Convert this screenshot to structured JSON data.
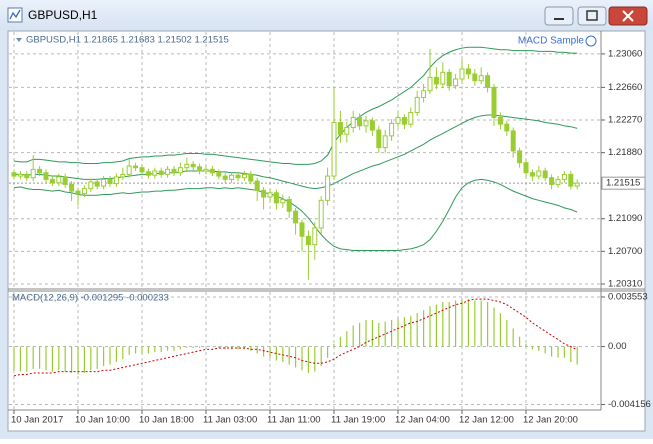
{
  "window": {
    "title": "GBPUSD,H1"
  },
  "chart_data": [
    {
      "type": "candlestick",
      "title": "GBPUSD,H1  1.21865 1.21683 1.21502 1.21515",
      "annotation": "MACD Sample",
      "categories": [
        "10 Jan 2017",
        null,
        null,
        null,
        null,
        null,
        null,
        null,
        null,
        null,
        "10 Jan 10:00",
        null,
        null,
        null,
        null,
        null,
        null,
        null,
        null,
        null,
        "10 Jan 18:00",
        null,
        null,
        null,
        null,
        null,
        null,
        null,
        null,
        null,
        "11 Jan 03:00",
        null,
        null,
        null,
        null,
        null,
        null,
        null,
        null,
        null,
        "11 Jan 11:00",
        null,
        null,
        null,
        null,
        null,
        null,
        null,
        null,
        null,
        "11 Jan 19:00",
        null,
        null,
        null,
        null,
        null,
        null,
        null,
        null,
        null,
        "12 Jan 04:00",
        null,
        null,
        null,
        null,
        null,
        null,
        null,
        null,
        null,
        "12 Jan 12:00",
        null,
        null,
        null,
        null,
        null,
        null,
        null,
        null,
        null,
        "12 Jan 20:00",
        null,
        null,
        null,
        null,
        null,
        null,
        null,
        null
      ],
      "open": [
        1.2164,
        1.216,
        1.2162,
        1.2158,
        1.2168,
        1.2164,
        1.2156,
        1.2152,
        1.2159,
        1.215,
        1.2142,
        1.2139,
        1.2145,
        1.2153,
        1.2148,
        1.2156,
        1.2151,
        1.2159,
        1.2162,
        1.2172,
        1.217,
        1.2165,
        1.2161,
        1.2166,
        1.2162,
        1.2168,
        1.2164,
        1.217,
        1.2174,
        1.2171,
        1.2166,
        1.2168,
        1.2164,
        1.216,
        1.2156,
        1.2161,
        1.2158,
        1.2162,
        1.2154,
        1.2143,
        1.2135,
        1.214,
        1.2128,
        1.2132,
        1.2118,
        1.2104,
        1.2088,
        1.2078,
        1.2098,
        1.2131,
        1.216,
        1.2224,
        1.221,
        1.2218,
        1.223,
        1.222,
        1.2226,
        1.2215,
        1.2194,
        1.2208,
        1.2223,
        1.223,
        1.2222,
        1.2236,
        1.2254,
        1.2262,
        1.2278,
        1.227,
        1.2284,
        1.2268,
        1.2276,
        1.2288,
        1.2282,
        1.2274,
        1.228,
        1.2266,
        1.223,
        1.2222,
        1.2214,
        1.219,
        1.2176,
        1.2164,
        1.216,
        1.2166,
        1.2158,
        1.215,
        1.2156,
        1.2162,
        1.2148
      ],
      "high": [
        1.2168,
        1.2166,
        1.2166,
        1.2185,
        1.2172,
        1.2168,
        1.216,
        1.2163,
        1.2163,
        1.2154,
        1.2146,
        1.2149,
        1.2157,
        1.2157,
        1.216,
        1.216,
        1.2163,
        1.217,
        1.218,
        1.2176,
        1.2174,
        1.2169,
        1.217,
        1.217,
        1.2172,
        1.2172,
        1.2176,
        1.2182,
        1.2178,
        1.2175,
        1.2172,
        1.2172,
        1.2168,
        1.2164,
        1.2165,
        1.2165,
        1.2166,
        1.2166,
        1.2158,
        1.2147,
        1.2145,
        1.2144,
        1.2138,
        1.2136,
        1.2122,
        1.2108,
        1.2095,
        1.2105,
        1.2136,
        1.217,
        1.2266,
        1.2238,
        1.2225,
        1.2238,
        1.2235,
        1.2232,
        1.223,
        1.222,
        1.2215,
        1.2228,
        1.2236,
        1.2234,
        1.2242,
        1.2262,
        1.227,
        1.2312,
        1.229,
        1.2296,
        1.2288,
        1.2282,
        1.23,
        1.2294,
        1.2288,
        1.229,
        1.2284,
        1.227,
        1.2236,
        1.2226,
        1.2218,
        1.2194,
        1.218,
        1.2168,
        1.2172,
        1.217,
        1.2162,
        1.216,
        1.2166,
        1.2166,
        1.2156
      ],
      "low": [
        1.2156,
        1.2156,
        1.2154,
        1.2154,
        1.216,
        1.2152,
        1.2148,
        1.2148,
        1.2146,
        1.213,
        1.2125,
        1.2135,
        1.2141,
        1.2144,
        1.2144,
        1.2147,
        1.2147,
        1.2155,
        1.2158,
        1.2166,
        1.2161,
        1.2157,
        1.2157,
        1.2158,
        1.2158,
        1.216,
        1.216,
        1.2166,
        1.2167,
        1.2162,
        1.2162,
        1.216,
        1.2156,
        1.2152,
        1.2152,
        1.2154,
        1.2154,
        1.215,
        1.213,
        1.212,
        1.213,
        1.212,
        1.2122,
        1.211,
        1.209,
        1.207,
        1.2036,
        1.206,
        1.209,
        1.2125,
        1.2155,
        1.22,
        1.22,
        1.2212,
        1.2215,
        1.2212,
        1.2208,
        1.2188,
        1.2188,
        1.2202,
        1.2218,
        1.2216,
        1.2218,
        1.2232,
        1.2248,
        1.2258,
        1.2264,
        1.2265,
        1.2262,
        1.2264,
        1.227,
        1.2276,
        1.2268,
        1.227,
        1.226,
        1.222,
        1.2216,
        1.2208,
        1.2182,
        1.217,
        1.2158,
        1.2154,
        1.2156,
        1.2154,
        1.2144,
        1.2146,
        1.2152,
        1.2144,
        1.2144
      ],
      "close": [
        1.216,
        1.2162,
        1.2158,
        1.2168,
        1.2164,
        1.2156,
        1.2152,
        1.2159,
        1.215,
        1.2142,
        1.2139,
        1.2145,
        1.2153,
        1.2148,
        1.2156,
        1.2151,
        1.2159,
        1.2162,
        1.2172,
        1.217,
        1.2165,
        1.2161,
        1.2166,
        1.2162,
        1.2168,
        1.2164,
        1.217,
        1.2174,
        1.2171,
        1.2166,
        1.2168,
        1.2164,
        1.216,
        1.2156,
        1.2161,
        1.2158,
        1.2162,
        1.2154,
        1.2143,
        1.2135,
        1.214,
        1.2128,
        1.2132,
        1.2118,
        1.2104,
        1.2088,
        1.2078,
        1.2098,
        1.2131,
        1.216,
        1.2224,
        1.221,
        1.2218,
        1.223,
        1.222,
        1.2226,
        1.2215,
        1.2194,
        1.2208,
        1.2223,
        1.223,
        1.2222,
        1.2236,
        1.2254,
        1.2262,
        1.2278,
        1.227,
        1.2284,
        1.2268,
        1.2276,
        1.2288,
        1.2282,
        1.2274,
        1.228,
        1.2266,
        1.223,
        1.2222,
        1.2214,
        1.219,
        1.2176,
        1.2164,
        1.216,
        1.2166,
        1.2158,
        1.215,
        1.2156,
        1.2162,
        1.2148,
        1.21515
      ],
      "bands": {
        "upper": [
          1.2178,
          1.2177,
          1.2177,
          1.218,
          1.218,
          1.2179,
          1.2178,
          1.2177,
          1.2177,
          1.2176,
          1.2176,
          1.2175,
          1.2175,
          1.2175,
          1.2176,
          1.2176,
          1.2177,
          1.2178,
          1.2181,
          1.2182,
          1.2183,
          1.2183,
          1.2184,
          1.2184,
          1.2185,
          1.2185,
          1.2186,
          1.2187,
          1.2187,
          1.2187,
          1.2186,
          1.2186,
          1.2185,
          1.2184,
          1.2183,
          1.2182,
          1.2181,
          1.218,
          1.2179,
          1.2178,
          1.2177,
          1.2176,
          1.2175,
          1.2175,
          1.2174,
          1.2174,
          1.2174,
          1.2175,
          1.2178,
          1.2185,
          1.22,
          1.221,
          1.2218,
          1.2225,
          1.2231,
          1.2236,
          1.224,
          1.2243,
          1.2247,
          1.2251,
          1.2256,
          1.2261,
          1.2266,
          1.2273,
          1.228,
          1.229,
          1.2298,
          1.2304,
          1.2308,
          1.2311,
          1.2313,
          1.2314,
          1.2314,
          1.2314,
          1.2313,
          1.2312,
          1.2311,
          1.2311,
          1.231,
          1.231,
          1.231,
          1.231,
          1.2309,
          1.2309,
          1.2309,
          1.2308,
          1.2308,
          1.2307,
          1.2307
        ],
        "middle": [
          1.2162,
          1.2162,
          1.2161,
          1.2162,
          1.2162,
          1.2161,
          1.216,
          1.216,
          1.2159,
          1.2158,
          1.2157,
          1.2156,
          1.2156,
          1.2156,
          1.2157,
          1.2157,
          1.2158,
          1.2159,
          1.216,
          1.2161,
          1.2162,
          1.2162,
          1.2163,
          1.2163,
          1.2164,
          1.2164,
          1.2165,
          1.2166,
          1.2166,
          1.2166,
          1.2166,
          1.2166,
          1.2165,
          1.2165,
          1.2164,
          1.2164,
          1.2163,
          1.2162,
          1.2161,
          1.2159,
          1.2158,
          1.2156,
          1.2154,
          1.2152,
          1.215,
          1.2148,
          1.2146,
          1.2145,
          1.2146,
          1.2148,
          1.2151,
          1.2155,
          1.2159,
          1.2163,
          1.2166,
          1.2169,
          1.2172,
          1.2174,
          1.2177,
          1.218,
          1.2183,
          1.2186,
          1.219,
          1.2194,
          1.2198,
          1.2203,
          1.2207,
          1.2211,
          1.2215,
          1.2219,
          1.2223,
          1.2227,
          1.223,
          1.2232,
          1.2233,
          1.2233,
          1.2232,
          1.2231,
          1.223,
          1.2229,
          1.2228,
          1.2227,
          1.2226,
          1.2224,
          1.2223,
          1.2222,
          1.222,
          1.2219,
          1.2217
        ],
        "lower": [
          1.2146,
          1.2147,
          1.2145,
          1.2144,
          1.2144,
          1.2143,
          1.2142,
          1.2143,
          1.2141,
          1.214,
          1.2138,
          1.2137,
          1.2137,
          1.2137,
          1.2138,
          1.2138,
          1.2139,
          1.214,
          1.2139,
          1.214,
          1.2141,
          1.2141,
          1.2142,
          1.2142,
          1.2143,
          1.2143,
          1.2144,
          1.2145,
          1.2145,
          1.2145,
          1.2146,
          1.2146,
          1.2145,
          1.2146,
          1.2145,
          1.2146,
          1.2145,
          1.2144,
          1.2143,
          1.214,
          1.2139,
          1.2136,
          1.2133,
          1.2129,
          1.2124,
          1.2118,
          1.211,
          1.21,
          1.209,
          1.2082,
          1.2076,
          1.2073,
          1.2072,
          1.2071,
          1.2071,
          1.2071,
          1.2071,
          1.2071,
          1.2071,
          1.2071,
          1.2071,
          1.2072,
          1.2073,
          1.2075,
          1.2078,
          1.2084,
          1.2094,
          1.2106,
          1.212,
          1.2135,
          1.2146,
          1.2152,
          1.2155,
          1.2156,
          1.2155,
          1.2153,
          1.215,
          1.2146,
          1.2142,
          1.2139,
          1.2136,
          1.2133,
          1.2131,
          1.2129,
          1.2127,
          1.2125,
          1.2122,
          1.212,
          1.2117
        ]
      },
      "current_price": 1.21515,
      "ylim": [
        1.2025,
        1.23322
      ],
      "yticks": [
        {
          "value": 1.2306,
          "label": "1.23060"
        },
        {
          "value": 1.2266,
          "label": "1.22660"
        },
        {
          "value": 1.2227,
          "label": "1.22270"
        },
        {
          "value": 1.2188,
          "label": "1.21880"
        },
        {
          "value": 1.2109,
          "label": "1.21090"
        },
        {
          "value": 1.207,
          "label": "1.20700"
        },
        {
          "value": 1.2031,
          "label": "1.20310"
        }
      ],
      "grid": true,
      "color": "#9acd32",
      "band_color": "#2f9a5a"
    },
    {
      "type": "macd",
      "title": "MACD(12,26,9) -0.001295 -0.000233",
      "histogram": [
        -0.0017,
        -0.0018,
        -0.0018,
        -0.0016,
        -0.0016,
        -0.0017,
        -0.0018,
        -0.0017,
        -0.0018,
        -0.0019,
        -0.002,
        -0.0019,
        -0.0017,
        -0.0016,
        -0.0014,
        -0.0013,
        -0.0011,
        -0.0009,
        -0.0006,
        -0.0005,
        -0.0005,
        -0.0005,
        -0.0004,
        -0.0004,
        -0.0003,
        -0.0003,
        -0.0002,
        -0.0001,
        -0.0001,
        -0.0001,
        0,
        0,
        -0.0001,
        -0.0002,
        -0.0002,
        -0.0002,
        -0.0002,
        -0.0003,
        -0.0005,
        -0.0007,
        -0.0008,
        -0.001,
        -0.0011,
        -0.0013,
        -0.0015,
        -0.0017,
        -0.0019,
        -0.0018,
        -0.0014,
        -0.0008,
        0.0002,
        0.0007,
        0.0011,
        0.0015,
        0.0017,
        0.0019,
        0.0019,
        0.0017,
        0.0018,
        0.0019,
        0.002,
        0.0021,
        0.0022,
        0.0024,
        0.0026,
        0.0029,
        0.003,
        0.0032,
        0.0032,
        0.0033,
        0.0034,
        0.0034,
        0.0033,
        0.0033,
        0.0032,
        0.0028,
        0.0024,
        0.0019,
        0.0013,
        0.0007,
        0.0002,
        -0.0002,
        -0.0003,
        -0.0005,
        -0.0007,
        -0.0008,
        -0.0008,
        -0.0011,
        -0.001295
      ],
      "signal": [
        -0.0021,
        -0.002,
        -0.002,
        -0.0019,
        -0.0019,
        -0.0019,
        -0.0019,
        -0.0018,
        -0.0018,
        -0.0018,
        -0.0018,
        -0.0018,
        -0.0018,
        -0.0018,
        -0.0017,
        -0.0017,
        -0.0016,
        -0.0015,
        -0.0014,
        -0.0013,
        -0.0012,
        -0.0011,
        -0.001,
        -0.0009,
        -0.0008,
        -0.0007,
        -0.0006,
        -0.0005,
        -0.0004,
        -0.0003,
        -0.0002,
        -0.0002,
        -0.0001,
        -0.0001,
        -0.0001,
        -0.0001,
        -0.0001,
        -0.0002,
        -0.0002,
        -0.0003,
        -0.0004,
        -0.0005,
        -0.0006,
        -0.0007,
        -0.0008,
        -0.001,
        -0.0011,
        -0.0012,
        -0.0012,
        -0.0011,
        -0.0009,
        -0.0006,
        -0.0004,
        -0.0002,
        0,
        0.0003,
        0.0005,
        0.0007,
        0.0009,
        0.0011,
        0.0013,
        0.0015,
        0.0017,
        0.0018,
        0.002,
        0.0022,
        0.0024,
        0.0026,
        0.0028,
        0.003,
        0.0031,
        0.0033,
        0.0034,
        0.0034,
        0.0034,
        0.0033,
        0.0032,
        0.003,
        0.0027,
        0.0024,
        0.0021,
        0.0017,
        0.0014,
        0.0011,
        0.0008,
        0.0005,
        0.0002,
        0,
        -0.000233
      ],
      "ylim": [
        -0.004547,
        0.003909
      ],
      "yticks": [
        0.003553,
        {
          "value": 0,
          "label": "0.00"
        },
        -0.004156
      ],
      "grid": true,
      "histogram_color": "#9acd32",
      "signal_color": "#d40000"
    }
  ]
}
